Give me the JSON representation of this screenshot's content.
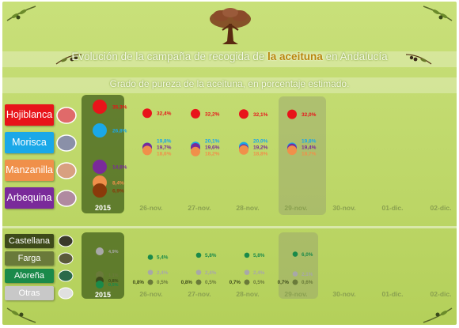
{
  "title": {
    "before": "Evolución de la campaña de recogida de ",
    "highlight": "la aceituna",
    "after": " en Andalucía"
  },
  "subtitle": "Grado de pureza de la aceituna, en porcentaje estimado.",
  "year_label": "2015",
  "dates": [
    "26-nov.",
    "27-nov.",
    "28-nov.",
    "29-nov.",
    "30-nov.",
    "01-dic.",
    "02-dic."
  ],
  "highlight_date": "29-nov.",
  "colors": {
    "Hojiblanca": "#e8141a",
    "Morisca": "#1aa8e8",
    "Manzanilla": "#f0904a",
    "Arbequina": "#7a2a9a",
    "Castellana": "#3d4a1a",
    "Farga": "#6a7a3a",
    "Aloreña": "#1a8a4a",
    "Otras": "#a8a8a8"
  },
  "chart_data": [
    {
      "type": "scatter",
      "name": "top",
      "categories": [
        "26-nov.",
        "27-nov.",
        "28-nov.",
        "29-nov.",
        "30-nov.",
        "01-dic.",
        "02-dic."
      ],
      "legend": [
        "Hojiblanca",
        "Morisca",
        "Manzanilla",
        "Arbequina"
      ],
      "baseline_2015": [
        {
          "series": "Hojiblanca",
          "value": 35.3,
          "label": "35,3%"
        },
        {
          "series": "Morisca",
          "value": 26.8,
          "label": "26,8%"
        },
        {
          "series": "Arbequina",
          "value": 14.8,
          "label": "14,8%"
        },
        {
          "series": "Manzanilla",
          "value": 8.4,
          "label": "8,4%"
        },
        {
          "series": "Arbequina-dark",
          "value": 6.9,
          "label": "6,9%"
        }
      ],
      "series": [
        {
          "name": "Hojiblanca",
          "values": [
            32.4,
            32.2,
            32.1,
            32.0
          ],
          "labels": [
            "32,4%",
            "32,2%",
            "32,1%",
            "32,0%"
          ]
        },
        {
          "name": "Morisca",
          "values": [
            19.8,
            20.1,
            20.0,
            19.8
          ],
          "labels": [
            "19,8%",
            "20,1%",
            "20,0%",
            "19,8%"
          ]
        },
        {
          "name": "Arbequina",
          "values": [
            19.7,
            19.6,
            19.2,
            19.4
          ],
          "labels": [
            "19,7%",
            "19,6%",
            "19,2%",
            "19,4%"
          ]
        },
        {
          "name": "Manzanilla",
          "values": [
            18.6,
            18.2,
            18.8,
            18.7
          ],
          "labels": [
            "18,6%",
            "18,2%",
            "18,8%",
            "18,7%"
          ]
        }
      ],
      "ylim": [
        0,
        40
      ]
    },
    {
      "type": "scatter",
      "name": "bottom",
      "categories": [
        "26-nov.",
        "27-nov.",
        "28-nov.",
        "29-nov.",
        "30-nov.",
        "01-dic.",
        "02-dic."
      ],
      "legend": [
        "Castellana",
        "Farga",
        "Aloreña",
        "Otras"
      ],
      "baseline_2015": [
        {
          "series": "Otras",
          "value": 4.9,
          "label": "4,9%"
        },
        {
          "series": "Farga",
          "value": 1.1,
          "label": "1,1%"
        },
        {
          "series": "Castellana",
          "value": 0.8,
          "label": "0,8%"
        },
        {
          "series": "Aloreña",
          "value": 0.5,
          "label": "0,5%"
        }
      ],
      "series": [
        {
          "name": "Aloreña",
          "values": [
            5.4,
            5.8,
            5.8,
            6.0
          ],
          "labels": [
            "5,4%",
            "5,8%",
            "5,8%",
            "6,0%"
          ]
        },
        {
          "name": "Otras",
          "values": [
            2.4,
            2.4,
            2.4,
            2.1
          ],
          "labels": [
            "2,4%",
            "2,4%",
            "2,4%",
            "2,1%"
          ]
        },
        {
          "name": "Castellana",
          "values": [
            0.8,
            0.8,
            0.7,
            0.7
          ],
          "labels": [
            "0,8%",
            "0,8%",
            "0,7%",
            "0,7%"
          ]
        },
        {
          "name": "Farga",
          "values": [
            0.5,
            0.5,
            0.5,
            0.6
          ],
          "labels": [
            "0,5%",
            "0,5%",
            "0,5%",
            "0,6%"
          ]
        }
      ],
      "ylim": [
        0,
        7
      ]
    }
  ]
}
